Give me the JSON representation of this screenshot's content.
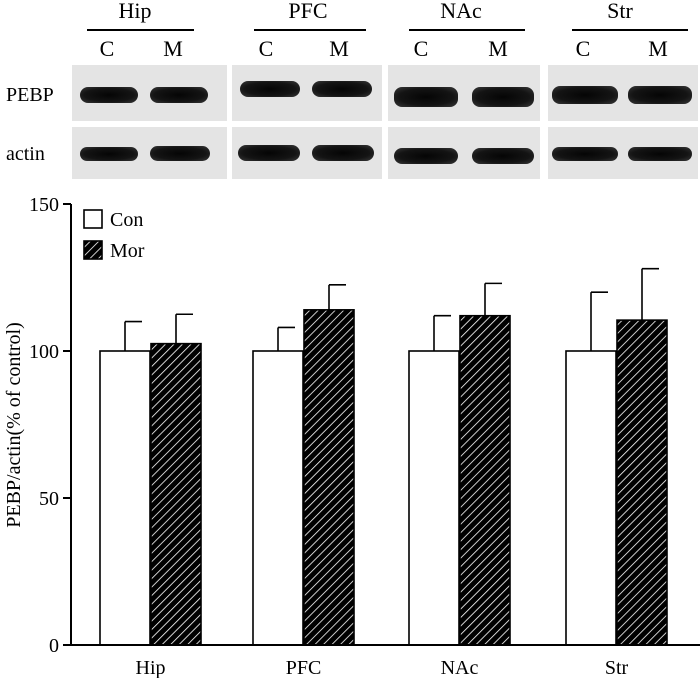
{
  "blot": {
    "regions": [
      "Hip",
      "PFC",
      "NAc",
      "Str"
    ],
    "lane_labels": [
      "C",
      "M"
    ],
    "row_labels": [
      "PEBP",
      "actin"
    ]
  },
  "chart_data": {
    "type": "bar",
    "categories": [
      "Hip",
      "PFC",
      "NAc",
      "Str"
    ],
    "series": [
      {
        "name": "Con",
        "values": [
          100,
          100,
          100,
          100
        ],
        "errors": [
          10,
          8,
          12,
          20
        ],
        "fill": "white"
      },
      {
        "name": "Mor",
        "values": [
          102.5,
          114,
          112,
          110.5
        ],
        "errors": [
          10,
          8.5,
          11,
          17.5
        ],
        "fill": "diagonal-hatch"
      }
    ],
    "title": "",
    "xlabel": "",
    "ylabel": "PEBP/actin(% of control)",
    "ylim": [
      0,
      150
    ],
    "yticks": [
      0,
      50,
      100,
      150
    ],
    "grid": false,
    "legend_position": "top-left"
  }
}
